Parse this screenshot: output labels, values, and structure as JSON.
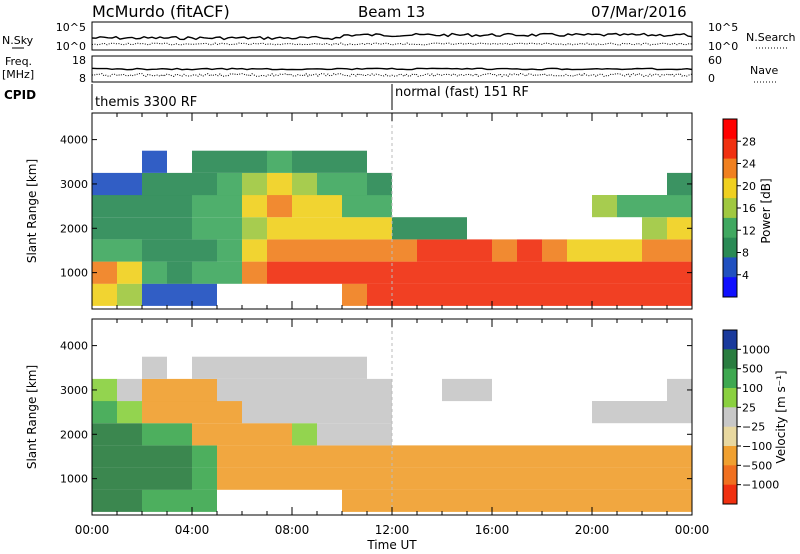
{
  "header": {
    "station": "McMurdo (fitACF)",
    "beam": "Beam 13",
    "date": "07/Mar/2016"
  },
  "left_labels": {
    "nsky": "N.Sky",
    "freq_line1": "Freq.",
    "freq_line2": "[MHz]",
    "cpid": "CPID"
  },
  "right_labels": {
    "nsearch": "N.Search",
    "nave": "Nave"
  },
  "noise_axis": {
    "left_ticks": [
      "10^5",
      "10^0"
    ],
    "right_ticks": [
      "10^5",
      "10^0"
    ]
  },
  "freq_axis": {
    "left_ticks": [
      "18",
      "8"
    ],
    "right_ticks": [
      "60",
      "0"
    ]
  },
  "cpid_segments": [
    {
      "label": "themis 3300 RF",
      "start_h": 0,
      "end_h": 12
    },
    {
      "label": "normal (fast) 151 RF",
      "start_h": 12,
      "end_h": 24
    }
  ],
  "colors": {
    "power_scale": [
      "#1010ff",
      "#2050c0",
      "#2a8a55",
      "#40a860",
      "#a0c840",
      "#f0d020",
      "#f08020",
      "#f03010",
      "#ff0000"
    ],
    "velocity_scale": [
      "#1a3a9c",
      "#2a7d40",
      "#3ea850",
      "#8ad040",
      "#c8c8c8",
      "#e8d8a0",
      "#f0a030",
      "#f07020",
      "#f03010"
    ]
  },
  "chart_data": [
    {
      "type": "heatmap",
      "name": "power",
      "ylabel": "Slant Range [km]",
      "xlim": [
        0,
        24
      ],
      "ylim": [
        180,
        4600
      ],
      "yticks": [
        1000,
        2000,
        3000,
        4000
      ],
      "colorbar": {
        "label": "Power [dB]",
        "ticks": [
          "4",
          "8",
          "12",
          "16",
          "20",
          "24",
          "28"
        ],
        "range": [
          0,
          32
        ]
      },
      "x": [
        0.5,
        1.5,
        2.5,
        3.5,
        4.5,
        5.5,
        6.5,
        7.5,
        8.5,
        9.5,
        10.5,
        11.5,
        12.5,
        13.5,
        14.5,
        15.5,
        16.5,
        17.5,
        18.5,
        19.5,
        20.5,
        21.5,
        22.5,
        23.5
      ],
      "y": [
        500,
        1000,
        1500,
        2000,
        2500,
        3000,
        3500
      ],
      "values": [
        [
          18,
          16,
          6,
          4,
          6,
          0,
          0,
          0,
          0,
          0,
          22,
          26,
          28,
          28,
          28,
          28,
          28,
          28,
          26,
          28,
          28,
          26,
          28,
          26
        ],
        [
          22,
          20,
          14,
          10,
          14,
          14,
          22,
          26,
          28,
          28,
          28,
          28,
          28,
          28,
          28,
          28,
          28,
          28,
          26,
          28,
          28,
          28,
          26,
          28
        ],
        [
          12,
          14,
          10,
          8,
          10,
          14,
          20,
          22,
          22,
          24,
          24,
          24,
          24,
          26,
          26,
          26,
          24,
          26,
          24,
          20,
          18,
          18,
          22,
          22
        ],
        [
          10,
          8,
          8,
          10,
          12,
          12,
          16,
          18,
          20,
          20,
          18,
          18,
          10,
          8,
          10,
          0,
          0,
          0,
          0,
          0,
          0,
          0,
          16,
          18
        ],
        [
          8,
          8,
          10,
          10,
          14,
          14,
          18,
          22,
          20,
          18,
          14,
          12,
          0,
          0,
          0,
          0,
          0,
          0,
          0,
          0,
          16,
          14,
          12,
          14
        ],
        [
          6,
          6,
          8,
          8,
          10,
          14,
          16,
          18,
          16,
          14,
          12,
          10,
          0,
          0,
          0,
          0,
          0,
          0,
          0,
          0,
          0,
          0,
          0,
          8
        ],
        [
          0,
          0,
          6,
          0,
          8,
          8,
          10,
          12,
          10,
          10,
          8,
          0,
          0,
          0,
          0,
          0,
          0,
          0,
          0,
          0,
          0,
          0,
          0,
          0
        ]
      ]
    },
    {
      "type": "heatmap",
      "name": "velocity",
      "ylabel": "Slant Range [km]",
      "xlabel": "Time UT",
      "xlim": [
        0,
        24
      ],
      "ylim": [
        180,
        4600
      ],
      "yticks": [
        1000,
        2000,
        3000,
        4000
      ],
      "xticks": [
        "00:00",
        "04:00",
        "08:00",
        "12:00",
        "16:00",
        "20:00",
        "00:00"
      ],
      "colorbar": {
        "label": "Velocity [m s⁻¹]",
        "ticks": [
          "1000",
          "500",
          "100",
          "25",
          "−25",
          "−100",
          "−500",
          "−1000"
        ]
      },
      "x": [
        0.5,
        1.5,
        2.5,
        3.5,
        4.5,
        5.5,
        6.5,
        7.5,
        8.5,
        9.5,
        10.5,
        11.5,
        12.5,
        13.5,
        14.5,
        15.5,
        16.5,
        17.5,
        18.5,
        19.5,
        20.5,
        21.5,
        22.5,
        23.5
      ],
      "y": [
        500,
        1000,
        1500,
        2000,
        2500,
        3000,
        3500
      ],
      "values": [
        [
          300,
          300,
          200,
          150,
          150,
          0,
          0,
          0,
          0,
          0,
          -200,
          -200,
          -200,
          -200,
          -200,
          -200,
          -200,
          -200,
          -200,
          -200,
          -200,
          -200,
          -200,
          -200
        ],
        [
          400,
          400,
          300,
          300,
          150,
          -150,
          -150,
          -200,
          -200,
          -200,
          -200,
          -200,
          -200,
          -200,
          -200,
          -200,
          -200,
          -200,
          -200,
          -200,
          -200,
          -200,
          -200,
          -200
        ],
        [
          400,
          400,
          300,
          300,
          200,
          -150,
          -150,
          -200,
          -200,
          -200,
          -200,
          -200,
          -200,
          -200,
          -200,
          -200,
          -200,
          -200,
          -200,
          -200,
          -200,
          -200,
          -200,
          -200
        ],
        [
          300,
          300,
          200,
          100,
          -150,
          -150,
          -200,
          -100,
          50,
          10,
          10,
          10,
          0,
          0,
          0,
          0,
          0,
          0,
          0,
          0,
          0,
          0,
          0,
          0
        ],
        [
          200,
          50,
          -150,
          -150,
          -150,
          -150,
          10,
          10,
          10,
          10,
          10,
          10,
          0,
          0,
          0,
          0,
          0,
          0,
          0,
          0,
          10,
          10,
          10,
          10
        ],
        [
          50,
          10,
          -150,
          -150,
          -150,
          10,
          10,
          10,
          10,
          10,
          10,
          10,
          0,
          0,
          10,
          10,
          0,
          0,
          0,
          0,
          0,
          0,
          0,
          10
        ],
        [
          0,
          0,
          10,
          0,
          10,
          10,
          10,
          10,
          10,
          10,
          10,
          0,
          0,
          0,
          0,
          0,
          0,
          0,
          0,
          0,
          0,
          0,
          0,
          0
        ]
      ]
    }
  ]
}
